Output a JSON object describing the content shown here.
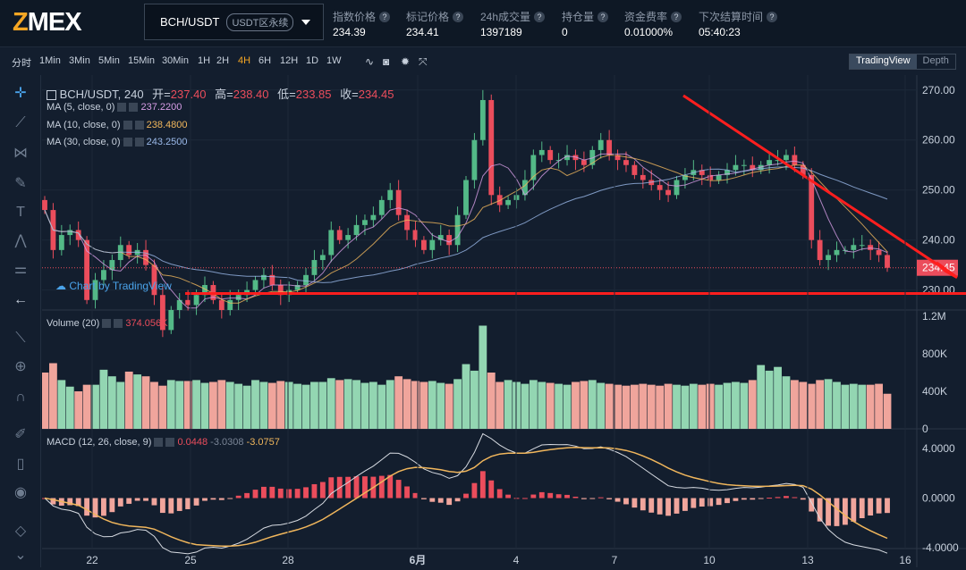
{
  "header": {
    "logo_z": "Z",
    "logo_rest": "MEX",
    "pair": "BCH/USDT",
    "pair_tag": "USDT区永续",
    "stats": [
      {
        "label": "指数价格",
        "value": "234.39"
      },
      {
        "label": "标记价格",
        "value": "234.41"
      },
      {
        "label": "24h成交量",
        "value": "1397189"
      },
      {
        "label": "持仓量",
        "value": "0"
      },
      {
        "label": "资金费率",
        "value": "0.01000%"
      },
      {
        "label": "下次结算时间",
        "value": "05:40:23"
      }
    ]
  },
  "toolbar": {
    "intervals": [
      "分时",
      "1Min",
      "3Min",
      "5Min",
      "15Min",
      "30Min",
      "1H",
      "2H",
      "4H",
      "6H",
      "12H",
      "1D",
      "1W"
    ],
    "active": "4H",
    "view_options": [
      "TradingView",
      "Depth"
    ]
  },
  "legend": {
    "title": "BCH/USDT, 240",
    "open_label": "开=",
    "open": "237.40",
    "high_label": "高=",
    "high": "238.40",
    "low_label": "低=",
    "low": "233.85",
    "close_label": "收=",
    "close": "234.45",
    "ma": [
      {
        "label": "MA (5, close, 0)",
        "value": "237.2200",
        "color": "#d79ee6"
      },
      {
        "label": "MA (10, close, 0)",
        "value": "238.4800",
        "color": "#f0b65c"
      },
      {
        "label": "MA (30, close, 0)",
        "value": "243.2500",
        "color": "#9ab8e8"
      }
    ],
    "volume_label": "Volume (20)",
    "volume_value": "374.056K",
    "macd_label": "MACD (12, 26, close, 9)",
    "macd_values": [
      "0.0448",
      "-3.0308",
      "-3.0757"
    ]
  },
  "watermark": "Chart by TradingView",
  "price_axis": [
    "270.00",
    "260.00",
    "250.00",
    "240.00",
    "230.00"
  ],
  "price_tag": "234.45",
  "volume_axis": [
    "1.2M",
    "800K",
    "400K",
    "0"
  ],
  "macd_axis": [
    "4.0000",
    "0.0000",
    "-4.0000"
  ],
  "time_axis": [
    "22",
    "25",
    "28",
    "6月",
    "4",
    "7",
    "10",
    "13",
    "16"
  ],
  "colors": {
    "up": "#53b987",
    "down": "#eb4d5c",
    "up_vol": "#93d6b2",
    "down_vol": "#f0a59c"
  },
  "chart_data": {
    "type": "candlestick",
    "ylim": [
      226,
      273
    ],
    "ohlc_close": [
      246,
      238,
      241,
      242,
      240,
      228,
      232,
      234,
      236,
      239,
      237,
      238,
      235,
      229,
      222,
      226,
      228,
      227,
      229,
      231,
      228,
      226,
      228,
      229,
      230,
      232,
      233,
      231,
      229,
      230,
      231,
      233,
      236,
      237,
      242,
      240,
      241,
      243,
      244,
      245,
      248,
      250,
      245,
      242,
      240,
      238,
      240,
      241,
      239,
      245,
      252,
      260,
      268,
      249,
      247,
      248,
      249,
      252,
      257,
      258,
      256,
      256,
      257,
      256,
      255,
      258,
      260,
      257,
      256,
      255,
      253,
      252,
      251,
      250,
      249,
      252,
      253,
      254,
      253,
      252,
      253,
      254,
      255,
      255,
      254,
      255,
      256,
      256,
      257,
      255,
      253,
      240,
      236,
      237,
      238,
      238,
      239,
      239,
      238,
      237,
      234.45
    ],
    "volume_k": [
      600,
      700,
      520,
      450,
      400,
      470,
      470,
      630,
      560,
      500,
      610,
      580,
      560,
      500,
      460,
      520,
      510,
      510,
      520,
      490,
      500,
      520,
      500,
      480,
      460,
      520,
      500,
      490,
      510,
      500,
      480,
      470,
      500,
      500,
      540,
      520,
      530,
      520,
      490,
      500,
      470,
      520,
      560,
      530,
      510,
      500,
      510,
      490,
      480,
      530,
      690,
      620,
      1100,
      600,
      500,
      520,
      500,
      480,
      520,
      500,
      490,
      480,
      470,
      500,
      510,
      520,
      490,
      480,
      470,
      460,
      470,
      480,
      470,
      460,
      480,
      470,
      460,
      480,
      470,
      480,
      470,
      490,
      500,
      490,
      520,
      680,
      620,
      660,
      560,
      520,
      500,
      480,
      520,
      530,
      500,
      470,
      480,
      470,
      470,
      480,
      374
    ]
  }
}
